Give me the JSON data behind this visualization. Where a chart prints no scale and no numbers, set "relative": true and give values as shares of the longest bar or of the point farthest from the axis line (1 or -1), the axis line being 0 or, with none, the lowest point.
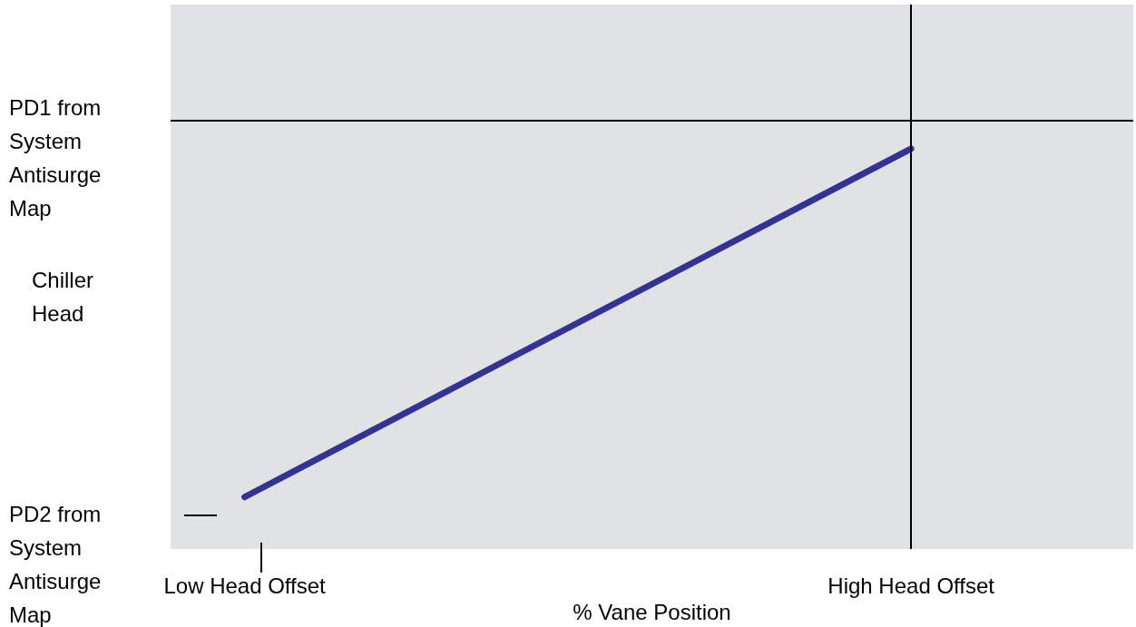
{
  "chart_data": {
    "type": "line",
    "relative": true,
    "xlabel": "% Vane Position",
    "ylabel": "Chiller Head",
    "categories": [
      null,
      "Low Head Offset",
      null,
      null,
      null,
      null,
      null,
      null,
      null,
      null,
      "High Head Offset",
      null,
      null,
      null
    ],
    "series": [
      {
        "color": "#333394",
        "values": [
          null,
          0.13,
          null,
          null,
          null,
          null,
          null,
          null,
          null,
          null,
          1,
          null,
          null,
          null
        ]
      }
    ],
    "ref_lines": [
      {
        "axis": "y",
        "value": 1.07,
        "color": "#000000"
      },
      {
        "axis": "x",
        "value": "High Head Offset",
        "color": "#000000"
      }
    ],
    "annotations": [
      "PD1 from System Antisurge Map",
      "PD2 from System Antisurge Map"
    ],
    "marker": "none",
    "line_style": "solid"
  }
}
